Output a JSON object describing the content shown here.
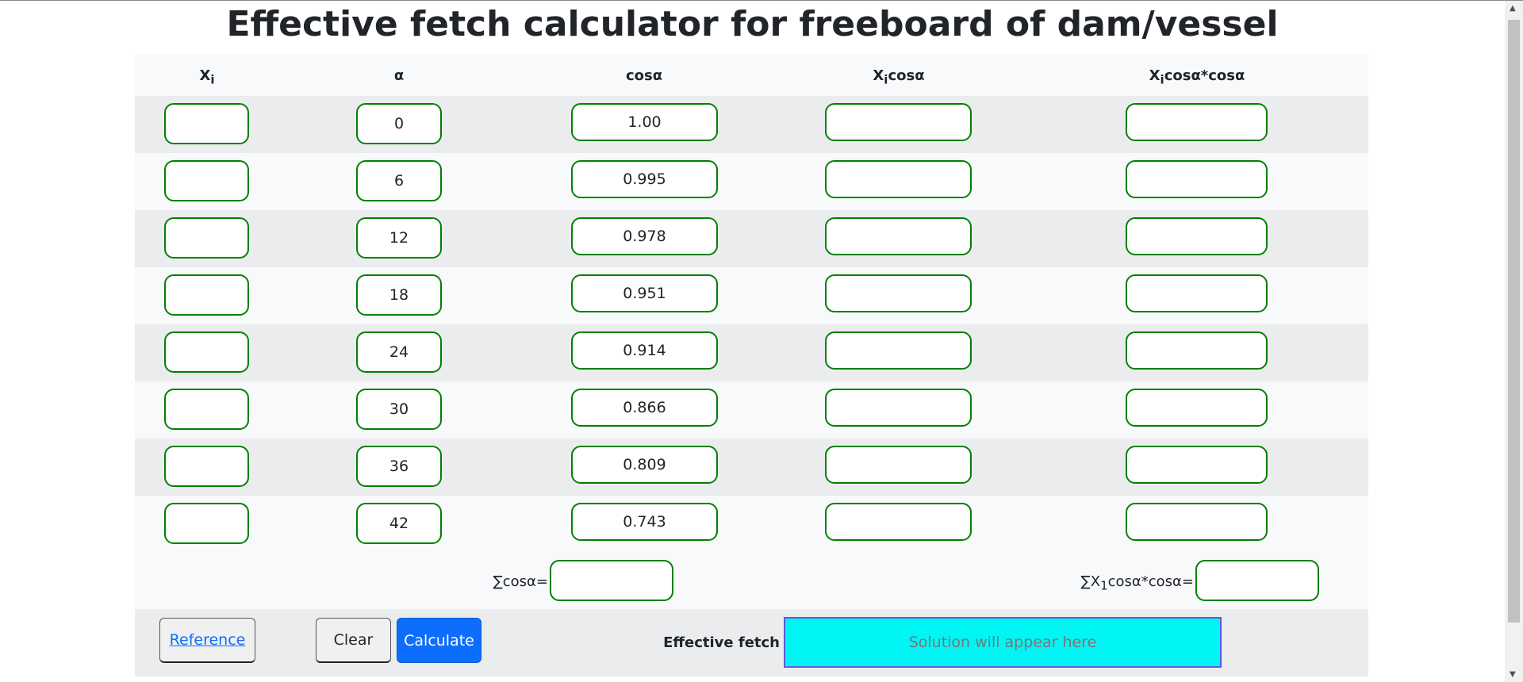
{
  "title": "Effective fetch calculator for freeboard of dam/vessel",
  "headers": {
    "xi": "X",
    "xi_sub": "i",
    "alpha": "α",
    "cos": "cosα",
    "xicos": "X",
    "xicos_sub": "i",
    "xicos_rest": "cosα",
    "xicoscos": "X",
    "xicoscos_sub": "i",
    "xicoscos_rest": "cosα*cosα"
  },
  "rows": [
    {
      "xi": "",
      "alpha": "0",
      "cos": "1.00",
      "xicos": "",
      "xicoscos": ""
    },
    {
      "xi": "",
      "alpha": "6",
      "cos": "0.995",
      "xicos": "",
      "xicoscos": ""
    },
    {
      "xi": "",
      "alpha": "12",
      "cos": "0.978",
      "xicos": "",
      "xicoscos": ""
    },
    {
      "xi": "",
      "alpha": "18",
      "cos": "0.951",
      "xicos": "",
      "xicoscos": ""
    },
    {
      "xi": "",
      "alpha": "24",
      "cos": "0.914",
      "xicos": "",
      "xicoscos": ""
    },
    {
      "xi": "",
      "alpha": "30",
      "cos": "0.866",
      "xicos": "",
      "xicoscos": ""
    },
    {
      "xi": "",
      "alpha": "36",
      "cos": "0.809",
      "xicos": "",
      "xicoscos": ""
    },
    {
      "xi": "",
      "alpha": "42",
      "cos": "0.743",
      "xicos": "",
      "xicoscos": ""
    }
  ],
  "sums": {
    "cos_label": "∑cosα=",
    "cos_value": "",
    "x_label_pre": "∑X",
    "x_label_sub": "1",
    "x_label_post": "cosα*cosα=",
    "x_value": ""
  },
  "actions": {
    "reference": "Reference",
    "clear": "Clear",
    "calculate": "Calculate"
  },
  "result": {
    "label": "Effective fetch",
    "placeholder": "Solution will appear here",
    "bg_color": "#00f5f5",
    "border_color": "#5b5bdf"
  },
  "colors": {
    "input_border": "#008000",
    "primary": "#0d6efd"
  }
}
